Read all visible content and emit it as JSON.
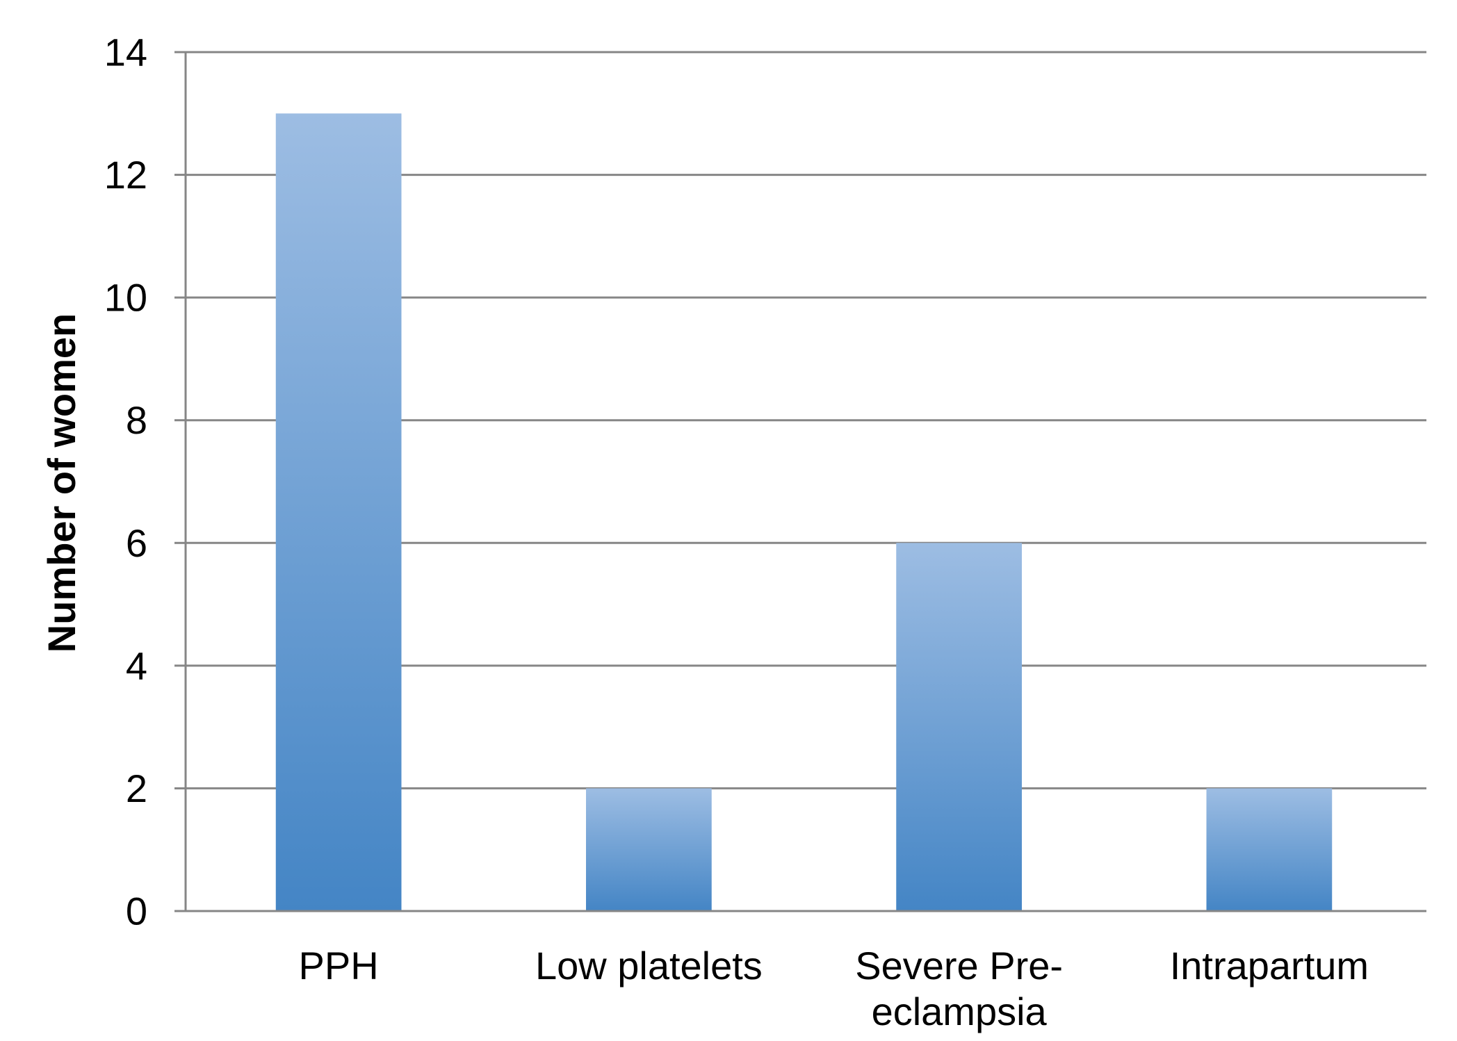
{
  "chart_data": {
    "type": "bar",
    "categories": [
      "PPH",
      "Low platelets",
      "Severe Pre-eclampsia",
      "Intrapartum"
    ],
    "category_label_lines": [
      [
        "PPH"
      ],
      [
        "Low platelets"
      ],
      [
        "Severe Pre-",
        "eclampsia"
      ],
      [
        "Intrapartum"
      ]
    ],
    "values": [
      13,
      2,
      6,
      2
    ],
    "title": "",
    "xlabel": "",
    "ylabel": "Number of women",
    "ylim": [
      0,
      14
    ],
    "yticks": [
      0,
      2,
      4,
      6,
      8,
      10,
      12,
      14
    ],
    "grid": true,
    "legend": "none",
    "colors": {
      "bar_top": "#9dbde3",
      "bar_bottom": "#4485c5",
      "grid": "#868686",
      "axis": "#868686"
    }
  }
}
